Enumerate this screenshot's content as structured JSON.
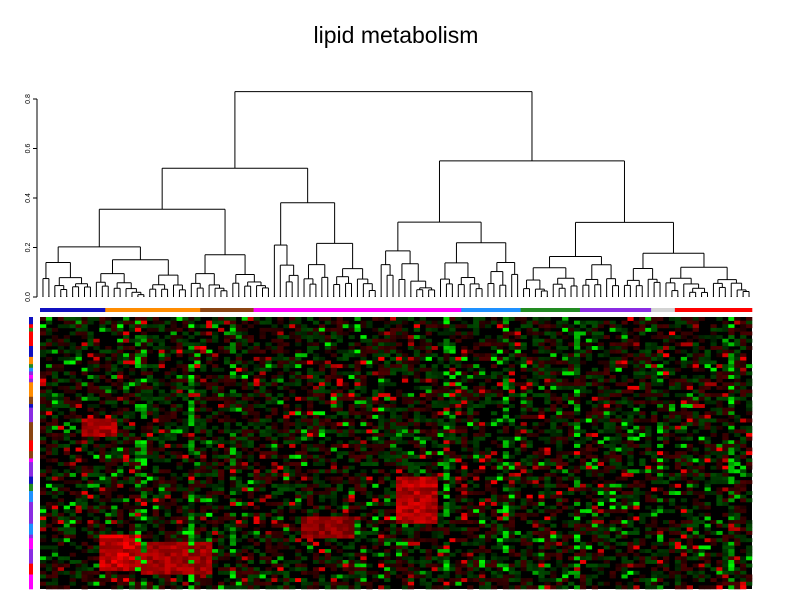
{
  "chart_data": {
    "type": "heatmap",
    "title": "lipid metabolism",
    "dendrogram": {
      "ylim": [
        0,
        0.8
      ],
      "y_ticks": [
        "0.0",
        "0.2",
        "0.4",
        "0.6",
        "0.8"
      ],
      "y_tick_values": [
        0,
        0.2,
        0.4,
        0.6,
        0.8
      ],
      "n_leaves": 120,
      "root_height": 0.83
    },
    "n_rows": 75,
    "n_columns": 120,
    "colormap": {
      "low": "#00ff00",
      "mid": "#000000",
      "high": "#ff0000"
    },
    "column_groups": [
      {
        "color": "#1010c0",
        "count": 11
      },
      {
        "color": "#ff8c00",
        "count": 16
      },
      {
        "color": "#8b4513",
        "count": 9
      },
      {
        "color": "#ff00ff",
        "count": 35
      },
      {
        "color": "#1e90ff",
        "count": 10
      },
      {
        "color": "#228b22",
        "count": 10
      },
      {
        "color": "#8a2be2",
        "count": 12
      },
      {
        "color": "#d3d3d3",
        "count": 4
      },
      {
        "color": "#ff0000",
        "count": 13
      }
    ],
    "row_group_colors": [
      "#ff8c00",
      "#1010c0",
      "#ff00ff",
      "#1e90ff",
      "#228b22",
      "#ff0000",
      "#8b4513",
      "#8a2be2"
    ]
  }
}
